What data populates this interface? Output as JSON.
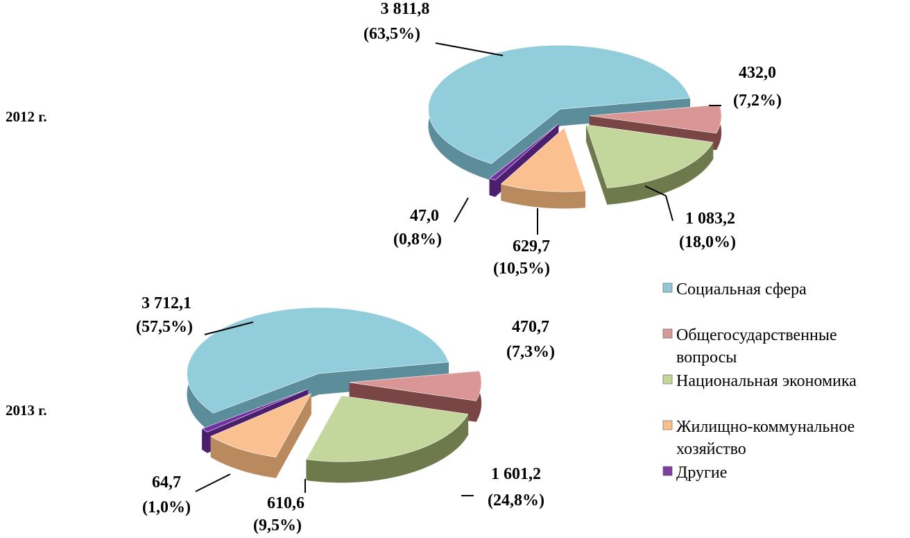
{
  "chart_data": [
    {
      "type": "pie",
      "title": "",
      "row_label": "2012 г.",
      "categories": [
        "Социальная сфера",
        "Общегосударственные вопросы",
        "Национальная экономика",
        "Жилищно-коммунальное хозяйство",
        "Другие"
      ],
      "values": [
        3811.8,
        432.0,
        1083.2,
        629.7,
        47.0
      ],
      "value_labels": [
        "3 811,8",
        "432,0",
        "1 083,2",
        "629,7",
        "47,0"
      ],
      "percent_labels": [
        "(63,5%)",
        "(7,2%)",
        "(18,0%)",
        "(10,5%)",
        "(0,8%)"
      ]
    },
    {
      "type": "pie",
      "title": "",
      "row_label": "2013 г.",
      "categories": [
        "Социальная сфера",
        "Общегосударственные вопросы",
        "Национальная экономика",
        "Жилищно-коммунальное хозяйство",
        "Другие"
      ],
      "values": [
        3712.1,
        470.7,
        1601.2,
        610.6,
        64.7
      ],
      "value_labels": [
        "3 712,1",
        "470,7",
        "1 601,2",
        "610,6",
        "64,7"
      ],
      "percent_labels": [
        "(57,5%)",
        "(7,3%)",
        "(24,8%)",
        "(9,5%)",
        "(1,0%)"
      ]
    }
  ],
  "legend": {
    "placement": "right",
    "items": [
      {
        "label_lines": [
          "Социальная сфера"
        ],
        "color": "#8fc8d9"
      },
      {
        "label_lines": [
          "Общегосударственные",
          "вопросы"
        ],
        "color": "#d79a98"
      },
      {
        "label_lines": [
          "Национальная экономика"
        ],
        "color": "#c3d69a"
      },
      {
        "label_lines": [
          "Жилищно-коммунальное",
          "хозяйство"
        ],
        "color": "#f9c08c"
      },
      {
        "label_lines": [
          "Другие"
        ],
        "color": "#7b3f9e"
      }
    ]
  },
  "colors": {
    "top": [
      "#92cddc",
      "#d99694",
      "#c3d69b",
      "#fac090",
      "#7030a0"
    ],
    "side": [
      "#5c8d9b",
      "#7a4645",
      "#6e7a4b",
      "#b98a5e",
      "#4b1f6e"
    ]
  }
}
